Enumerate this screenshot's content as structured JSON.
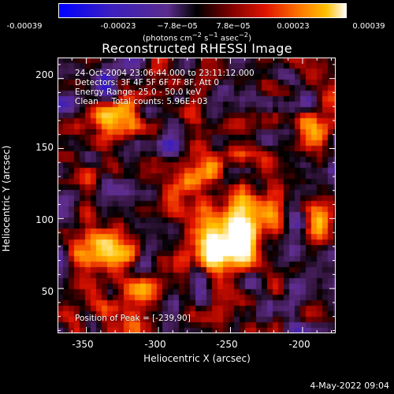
{
  "colorbar": {
    "ticks": [
      "-0.00039",
      "-0.00023",
      "−7.8e−05",
      "7.8e−05",
      "0.00023",
      "0.00039"
    ],
    "units_prefix": "(photons cm",
    "units_sup1": "−2",
    "units_mid1": " s",
    "units_sup2": "−1",
    "units_mid2": " asec",
    "units_sup3": "−2",
    "units_suffix": ")"
  },
  "title": "Reconstructed RHESSI Image",
  "annotations": {
    "time": "24-Oct-2004 23:06:44.000 to 23:11:12.000",
    "detectors": "Detectors: 3F 4F 5F 6F 7F 8F, Att 0",
    "energy": "Energy Range: 25.0 - 50.0 keV",
    "clean": "Clean     Total counts: 5.96E+03",
    "peak": "Position of Peak = [-239,90]"
  },
  "axes": {
    "xlabel": "Heliocentric X (arcsec)",
    "ylabel": "Heliocentric Y (arcsec)",
    "xticks": [
      "-350",
      "-300",
      "-250",
      "-200"
    ],
    "yticks": [
      "200",
      "150",
      "100",
      "50"
    ],
    "xrange": [
      -370,
      -177
    ],
    "yrange": [
      18,
      215
    ]
  },
  "timestamp": "4-May-2022 09:04",
  "colors": {
    "background": "#000000",
    "colormap": [
      "#0000ff",
      "#3b1fa8",
      "#5a2c8c",
      "#2a1a40",
      "#000000",
      "#7a0000",
      "#e01000",
      "#ff6a00",
      "#ffb000",
      "#ffffff"
    ]
  }
}
